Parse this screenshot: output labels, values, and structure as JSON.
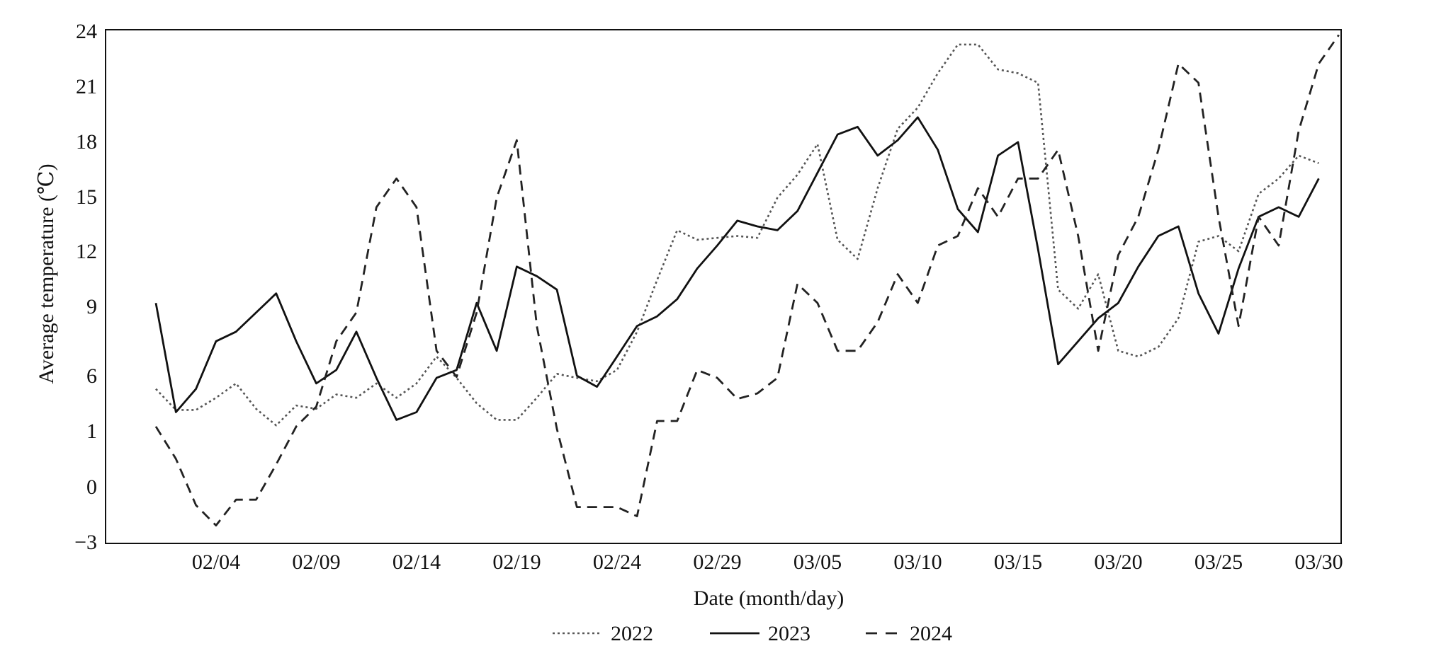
{
  "chart_data": {
    "type": "line",
    "xlabel": "Date (month/day)",
    "ylabel": "Average temperature (℃)",
    "y_ticks": [
      "24",
      "21",
      "18",
      "15",
      "12",
      "9",
      "6",
      "1",
      "0",
      "−3"
    ],
    "x_ticks": [
      "02/04",
      "02/09",
      "02/14",
      "02/19",
      "02/24",
      "02/29",
      "03/05",
      "03/10",
      "03/15",
      "03/20",
      "03/25",
      "03/30"
    ],
    "legend_position": "bottom-center",
    "grid": false,
    "series": [
      {
        "name": "2022",
        "style": "dotted",
        "color": "#555555",
        "values": [
          4.8,
          2.9,
          2.9,
          4.0,
          5.3,
          3.0,
          1.5,
          3.3,
          3.0,
          4.3,
          4.0,
          5.3,
          4.0,
          5.3,
          7.0,
          5.8,
          3.5,
          2.0,
          2.0,
          4.0,
          6.1,
          5.8,
          5.5,
          6.3,
          8.3,
          11.0,
          13.6,
          13.1,
          13.2,
          13.3,
          13.2,
          15.3,
          16.5,
          18.1,
          13.1,
          12.1,
          15.8,
          18.9,
          20.0,
          21.8,
          23.3,
          23.3,
          22.0,
          21.8,
          21.3,
          10.5,
          9.5,
          11.3,
          7.3,
          7.0,
          7.5,
          9.0,
          13.0,
          13.3,
          12.5,
          15.5,
          16.3,
          17.5,
          17.1
        ]
      },
      {
        "name": "2023",
        "style": "solid",
        "color": "#111111",
        "values": [
          9.8,
          2.7,
          4.8,
          7.8,
          8.3,
          9.3,
          10.3,
          7.8,
          5.3,
          6.3,
          8.3,
          5.8,
          2.0,
          2.7,
          5.8,
          6.3,
          9.8,
          7.3,
          11.7,
          11.2,
          10.5,
          6.0,
          5.0,
          7.0,
          8.6,
          9.1,
          10.0,
          11.6,
          12.8,
          14.1,
          13.8,
          13.6,
          14.6,
          16.6,
          18.6,
          19.0,
          17.5,
          18.3,
          19.5,
          17.8,
          14.7,
          13.5,
          17.5,
          18.2,
          12.6,
          6.6,
          7.8,
          9.0,
          9.8,
          11.7,
          13.3,
          13.8,
          10.3,
          8.2,
          11.6,
          14.3,
          14.8,
          14.3,
          16.3
        ]
      },
      {
        "name": "2024",
        "style": "dashed",
        "color": "#222222",
        "values": [
          1.4,
          0.5,
          -1.0,
          -2.1,
          -0.7,
          -0.7,
          0.4,
          1.4,
          3.2,
          7.8,
          9.3,
          14.8,
          16.3,
          14.8,
          7.3,
          5.9,
          9.3,
          15.3,
          18.3,
          8.6,
          1.2,
          -1.1,
          -1.1,
          -1.1,
          -1.6,
          1.9,
          1.9,
          6.3,
          5.8,
          3.9,
          4.4,
          5.8,
          10.8,
          9.8,
          7.3,
          7.3,
          8.8,
          11.3,
          9.8,
          12.8,
          13.3,
          15.8,
          14.3,
          16.3,
          16.3,
          17.8,
          13.3,
          7.3,
          12.3,
          14.3,
          17.8,
          22.3,
          21.3,
          14.3,
          8.6,
          14.3,
          12.8,
          18.8,
          22.3,
          23.8
        ]
      }
    ]
  }
}
